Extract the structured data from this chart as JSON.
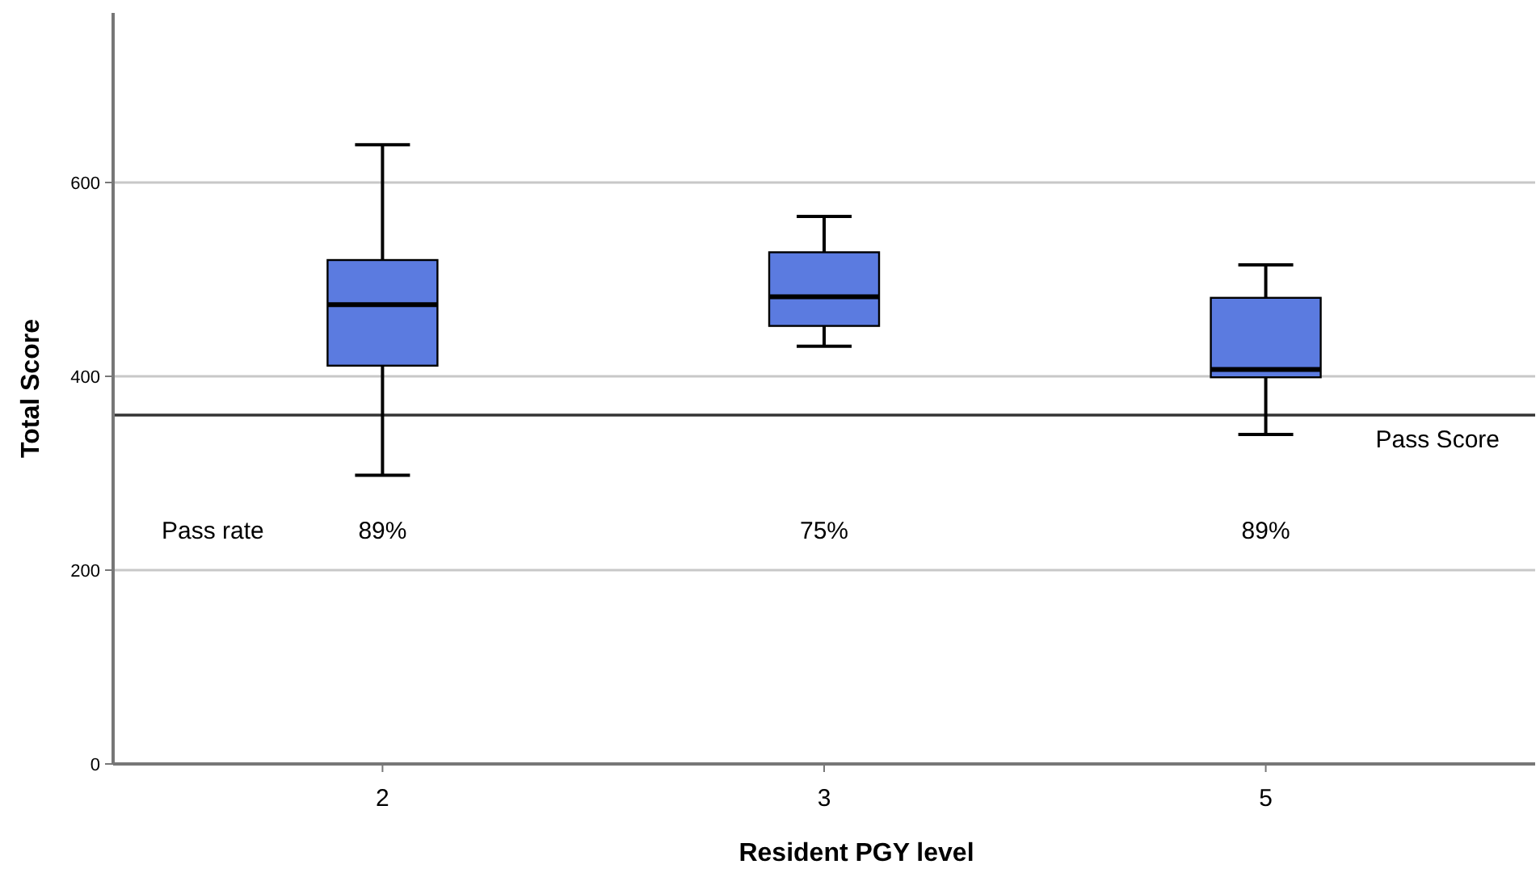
{
  "chart_data": {
    "type": "box",
    "xlabel": "Resident PGY level",
    "ylabel": "Total Score",
    "categories": [
      "2",
      "3",
      "5"
    ],
    "color": "#5b7be0",
    "boxes": [
      {
        "low": 298,
        "q1": 411,
        "median": 474,
        "q3": 520,
        "high": 639
      },
      {
        "low": 431,
        "q1": 452,
        "median": 482,
        "q3": 528,
        "high": 565
      },
      {
        "low": 340,
        "q1": 399,
        "median": 407,
        "q3": 481,
        "high": 515
      }
    ],
    "ylim": [
      0,
      775
    ],
    "yticks": [
      0,
      200,
      400,
      600
    ],
    "grid": "y",
    "ref_lines": [
      {
        "axis": "y",
        "value": 360,
        "label": "Pass Score",
        "color": "#333333"
      }
    ],
    "annotations": [
      "Pass rate",
      "89%",
      "75%",
      "89%"
    ]
  }
}
